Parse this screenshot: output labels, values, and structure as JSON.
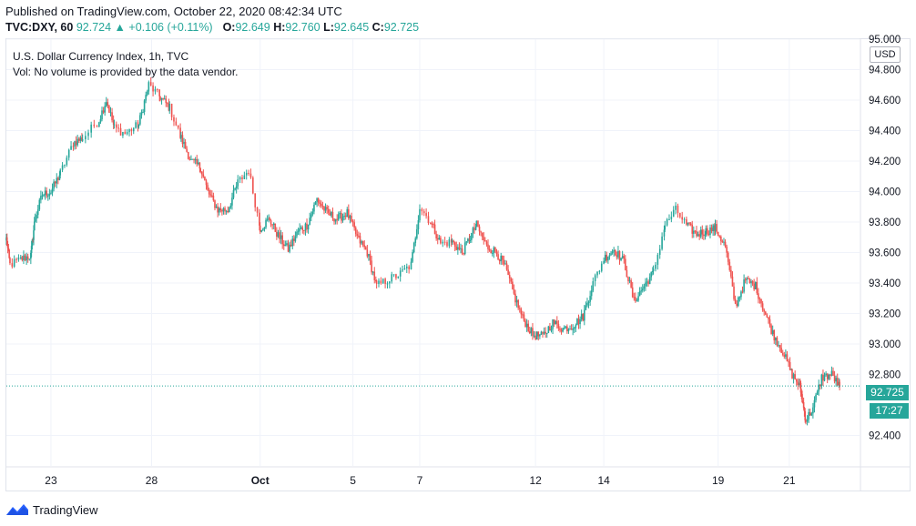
{
  "header": {
    "published": "Published on TradingView.com, October 22, 2020 08:42:34 UTC",
    "symbol": "TVC:DXY, 60",
    "last": "92.724",
    "change_arrow": "▲",
    "change": "+0.106 (+0.11%)",
    "o_label": "O:",
    "o_value": "92.649",
    "h_label": "H:",
    "h_value": "92.760",
    "l_label": "L:",
    "l_value": "92.645",
    "c_label": "C:",
    "c_value": "92.725"
  },
  "legend": {
    "title": "U.S. Dollar Currency Index, 1h, TVC",
    "volume_note": "Vol: No volume is provided by the data vendor."
  },
  "price_scale": {
    "currency": "USD",
    "last_price": "92.725",
    "countdown": "17:27"
  },
  "footer": {
    "brand": "TradingView"
  },
  "colors": {
    "up": "#26a69a",
    "down": "#ef5350",
    "grid": "#f0f3fa",
    "axis_text": "#131722"
  },
  "chart_data": {
    "type": "candlestick",
    "title": "U.S. Dollar Currency Index, 1h, TVC",
    "ylim": [
      92.2,
      95.0
    ],
    "y_ticks": [
      "92.400",
      "92.800",
      "93.000",
      "93.200",
      "93.400",
      "93.600",
      "93.800",
      "94.000",
      "94.200",
      "94.400",
      "94.600",
      "94.800",
      "95.000"
    ],
    "x_ticks": [
      "23",
      "28",
      "Oct",
      "5",
      "7",
      "12",
      "14",
      "19",
      "21"
    ],
    "x_tick_index": [
      62,
      202,
      353,
      482,
      575,
      736,
      831,
      990,
      1089
    ],
    "last_value": 92.725,
    "anchors": [
      [
        0,
        93.69
      ],
      [
        5,
        93.52
      ],
      [
        22,
        93.56
      ],
      [
        34,
        93.58
      ],
      [
        40,
        93.83
      ],
      [
        50,
        93.98
      ],
      [
        62,
        94.0
      ],
      [
        75,
        94.12
      ],
      [
        93,
        94.32
      ],
      [
        106,
        94.35
      ],
      [
        129,
        94.47
      ],
      [
        139,
        94.6
      ],
      [
        150,
        94.42
      ],
      [
        165,
        94.38
      ],
      [
        184,
        94.44
      ],
      [
        198,
        94.7
      ],
      [
        214,
        94.62
      ],
      [
        227,
        94.55
      ],
      [
        243,
        94.35
      ],
      [
        257,
        94.2
      ],
      [
        270,
        94.16
      ],
      [
        280,
        94.0
      ],
      [
        294,
        93.88
      ],
      [
        308,
        93.88
      ],
      [
        322,
        94.06
      ],
      [
        337,
        94.14
      ],
      [
        353,
        93.76
      ],
      [
        366,
        93.82
      ],
      [
        378,
        93.71
      ],
      [
        392,
        93.62
      ],
      [
        406,
        93.74
      ],
      [
        418,
        93.78
      ],
      [
        432,
        93.95
      ],
      [
        446,
        93.86
      ],
      [
        460,
        93.82
      ],
      [
        474,
        93.86
      ],
      [
        488,
        93.7
      ],
      [
        502,
        93.6
      ],
      [
        515,
        93.38
      ],
      [
        530,
        93.42
      ],
      [
        548,
        93.46
      ],
      [
        563,
        93.52
      ],
      [
        575,
        93.9
      ],
      [
        590,
        93.8
      ],
      [
        604,
        93.66
      ],
      [
        620,
        93.67
      ],
      [
        634,
        93.6
      ],
      [
        645,
        93.7
      ],
      [
        654,
        93.78
      ],
      [
        668,
        93.64
      ],
      [
        682,
        93.6
      ],
      [
        694,
        93.5
      ],
      [
        706,
        93.32
      ],
      [
        718,
        93.17
      ],
      [
        732,
        93.06
      ],
      [
        746,
        93.05
      ],
      [
        760,
        93.14
      ],
      [
        774,
        93.1
      ],
      [
        788,
        93.12
      ],
      [
        802,
        93.18
      ],
      [
        816,
        93.4
      ],
      [
        831,
        93.56
      ],
      [
        845,
        93.62
      ],
      [
        859,
        93.54
      ],
      [
        873,
        93.28
      ],
      [
        887,
        93.38
      ],
      [
        900,
        93.47
      ],
      [
        916,
        93.78
      ],
      [
        931,
        93.88
      ],
      [
        946,
        93.78
      ],
      [
        960,
        93.72
      ],
      [
        973,
        93.74
      ],
      [
        986,
        93.76
      ],
      [
        1000,
        93.64
      ],
      [
        1014,
        93.25
      ],
      [
        1028,
        93.42
      ],
      [
        1042,
        93.38
      ],
      [
        1054,
        93.22
      ],
      [
        1066,
        93.07
      ],
      [
        1080,
        92.95
      ],
      [
        1093,
        92.8
      ],
      [
        1104,
        92.72
      ],
      [
        1112,
        92.5
      ],
      [
        1122,
        92.58
      ],
      [
        1134,
        92.78
      ],
      [
        1148,
        92.8
      ],
      [
        1159,
        92.72
      ]
    ]
  }
}
